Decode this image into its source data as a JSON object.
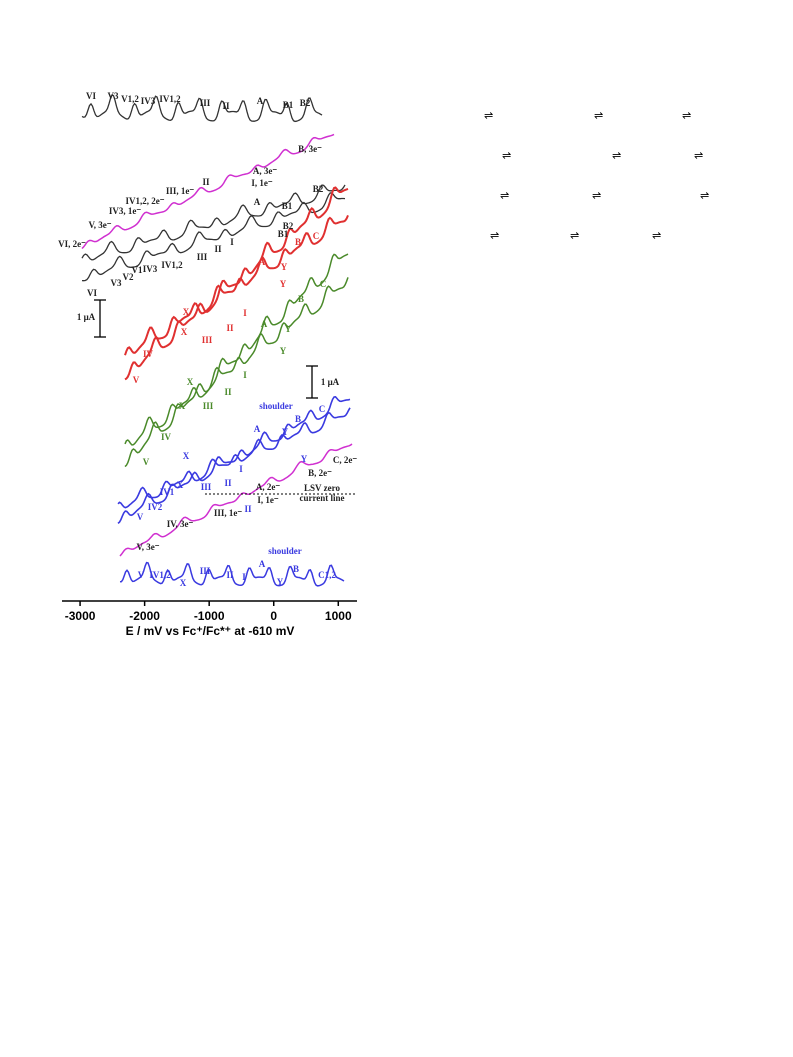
{
  "chart_data": {
    "type": "line",
    "xlabel": "E / mV vs Fc⁺/Fc*⁺ at -610 mV",
    "xlim": [
      -3280,
      1290
    ],
    "xticks": [
      -3000,
      -2000,
      -1000,
      0,
      1000
    ],
    "annotations": [
      {
        "text": "VI",
        "color": "#222"
      },
      {
        "text": "V3",
        "color": "#222"
      },
      {
        "text": "V1,2",
        "color": "#222"
      },
      {
        "text": "IV3",
        "color": "#222"
      },
      {
        "text": "IV1,2",
        "color": "#222"
      },
      {
        "text": "III",
        "color": "#222"
      },
      {
        "text": "II",
        "color": "#222"
      },
      {
        "text": "A",
        "color": "#222"
      },
      {
        "text": "B1",
        "color": "#222"
      },
      {
        "text": "B2",
        "color": "#222"
      },
      {
        "text": "B, 3e⁻",
        "color": "#222"
      },
      {
        "text": "A, 3e⁻",
        "color": "#222"
      },
      {
        "text": "I, 1e⁻",
        "color": "#222"
      },
      {
        "text": "II",
        "color": "#222"
      },
      {
        "text": "III, 1e⁻",
        "color": "#222"
      },
      {
        "text": "IV1,2, 2e⁻",
        "color": "#222"
      },
      {
        "text": "IV3, 1e⁻",
        "color": "#222"
      },
      {
        "text": "V, 3e⁻",
        "color": "#222"
      },
      {
        "text": "VI, 2e⁻",
        "color": "#222"
      },
      {
        "text": "B2",
        "color": "#222"
      },
      {
        "text": "A",
        "color": "#222"
      },
      {
        "text": "B1",
        "color": "#222"
      },
      {
        "text": "B2",
        "color": "#222"
      },
      {
        "text": "B1",
        "color": "#222"
      },
      {
        "text": "I",
        "color": "#222"
      },
      {
        "text": "II",
        "color": "#222"
      },
      {
        "text": "III",
        "color": "#222"
      },
      {
        "text": "VI",
        "color": "#222"
      },
      {
        "text": "V3",
        "color": "#222"
      },
      {
        "text": "V2",
        "color": "#222"
      },
      {
        "text": "V1",
        "color": "#222"
      },
      {
        "text": "IV3",
        "color": "#222"
      },
      {
        "text": "IV1,2",
        "color": "#222"
      },
      {
        "text": "C",
        "color": "#e03030"
      },
      {
        "text": "B",
        "color": "#e03030"
      },
      {
        "text": "A",
        "color": "#e03030"
      },
      {
        "text": "Y",
        "color": "#e03030"
      },
      {
        "text": "Y",
        "color": "#e03030"
      },
      {
        "text": "X",
        "color": "#e03030"
      },
      {
        "text": "X",
        "color": "#e03030"
      },
      {
        "text": "III",
        "color": "#e03030"
      },
      {
        "text": "II",
        "color": "#e03030"
      },
      {
        "text": "I",
        "color": "#e03030"
      },
      {
        "text": "IV",
        "color": "#e03030"
      },
      {
        "text": "V",
        "color": "#e03030"
      },
      {
        "text": "C",
        "color": "#4a8a2a"
      },
      {
        "text": "B",
        "color": "#4a8a2a"
      },
      {
        "text": "A",
        "color": "#4a8a2a"
      },
      {
        "text": "Y",
        "color": "#4a8a2a"
      },
      {
        "text": "Y",
        "color": "#4a8a2a"
      },
      {
        "text": "X",
        "color": "#4a8a2a"
      },
      {
        "text": "X",
        "color": "#4a8a2a"
      },
      {
        "text": "III",
        "color": "#4a8a2a"
      },
      {
        "text": "II",
        "color": "#4a8a2a"
      },
      {
        "text": "I",
        "color": "#4a8a2a"
      },
      {
        "text": "IV",
        "color": "#4a8a2a"
      },
      {
        "text": "V",
        "color": "#4a8a2a"
      },
      {
        "text": "shoulder",
        "color": "#3a3ae0"
      },
      {
        "text": "C",
        "color": "#3a3ae0"
      },
      {
        "text": "B",
        "color": "#3a3ae0"
      },
      {
        "text": "A",
        "color": "#3a3ae0"
      },
      {
        "text": "Y",
        "color": "#3a3ae0"
      },
      {
        "text": "Y",
        "color": "#3a3ae0"
      },
      {
        "text": "X",
        "color": "#3a3ae0"
      },
      {
        "text": "X",
        "color": "#3a3ae0"
      },
      {
        "text": "III",
        "color": "#3a3ae0"
      },
      {
        "text": "II",
        "color": "#3a3ae0"
      },
      {
        "text": "I",
        "color": "#3a3ae0"
      },
      {
        "text": "IV1",
        "color": "#3a3ae0"
      },
      {
        "text": "IV2",
        "color": "#3a3ae0"
      },
      {
        "text": "V",
        "color": "#3a3ae0"
      },
      {
        "text": "C, 2e⁻",
        "color": "#222"
      },
      {
        "text": "B, 2e⁻",
        "color": "#222"
      },
      {
        "text": "A, 2e⁻",
        "color": "#222"
      },
      {
        "text": "LSV zero",
        "color": "#222"
      },
      {
        "text": "current line",
        "color": "#222"
      },
      {
        "text": "I, 1e⁻",
        "color": "#222"
      },
      {
        "text": "II",
        "color": "#3a3ae0"
      },
      {
        "text": "III, 1e⁻",
        "color": "#222"
      },
      {
        "text": "IV, 3e⁻",
        "color": "#222"
      },
      {
        "text": "V, 3e⁻",
        "color": "#222"
      },
      {
        "text": "shoulder",
        "color": "#3a3ae0"
      },
      {
        "text": "V",
        "color": "#3a3ae0"
      },
      {
        "text": "IV1,2",
        "color": "#3a3ae0"
      },
      {
        "text": "X",
        "color": "#3a3ae0"
      },
      {
        "text": "III",
        "color": "#3a3ae0"
      },
      {
        "text": "II",
        "color": "#3a3ae0"
      },
      {
        "text": "I",
        "color": "#3a3ae0"
      },
      {
        "text": "A",
        "color": "#3a3ae0"
      },
      {
        "text": "Y",
        "color": "#3a3ae0"
      },
      {
        "text": "B",
        "color": "#3a3ae0"
      },
      {
        "text": "C1,2",
        "color": "#3a3ae0"
      },
      {
        "text": "1 μA",
        "color": "#222"
      },
      {
        "text": "1 μA",
        "color": "#222"
      }
    ]
  }
}
